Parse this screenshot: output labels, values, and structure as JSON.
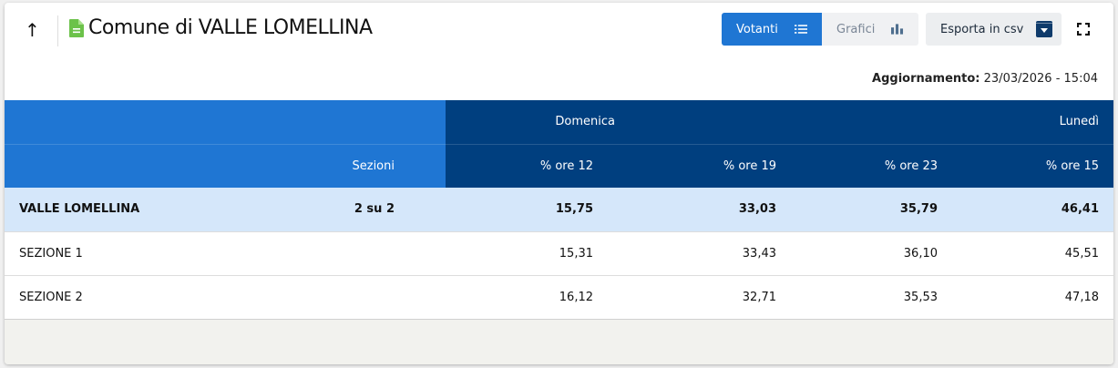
{
  "header": {
    "title": "Comune di VALLE LOMELLINA",
    "votanti_label": "Votanti",
    "grafici_label": "Grafici",
    "export_label": "Esporta in csv",
    "update_label": "Aggiornamento:",
    "update_value": "23/03/2026 - 15:04"
  },
  "colors": {
    "primary": "#1f76d3",
    "dark": "#003f7f",
    "total_row": "#d5e7fa",
    "doc_icon": "#6cc24a"
  },
  "table": {
    "group_headers": [
      "Domenica",
      "Lunedì"
    ],
    "columns": [
      "Sezioni",
      "% ore 12",
      "% ore 19",
      "% ore 23",
      "% ore 15"
    ],
    "rows": [
      {
        "name": "VALLE LOMELLINA",
        "sezioni": "2 su 2",
        "values": [
          "15,75",
          "33,03",
          "35,79",
          "46,41"
        ]
      },
      {
        "name": "SEZIONE 1",
        "sezioni": "",
        "values": [
          "15,31",
          "33,43",
          "36,10",
          "45,51"
        ]
      },
      {
        "name": "SEZIONE 2",
        "sezioni": "",
        "values": [
          "16,12",
          "32,71",
          "35,53",
          "47,18"
        ]
      }
    ]
  }
}
